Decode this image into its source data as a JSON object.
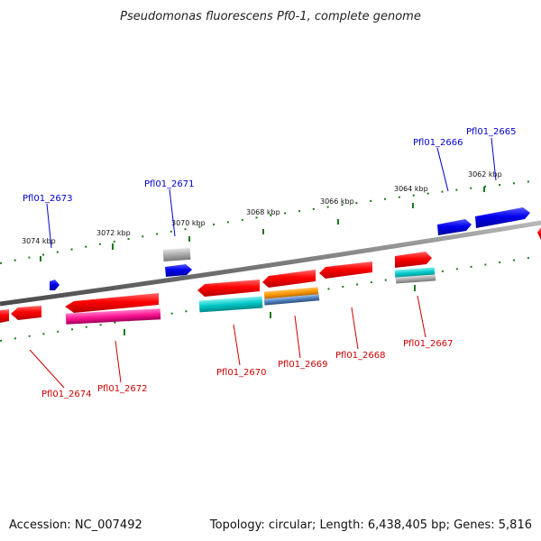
{
  "title": "Pseudomonas fluorescens Pf0-1, complete genome",
  "footer": {
    "accession": "Accession: NC_007492",
    "summary": "Topology: circular; Length: 6,438,405 bp; Genes: 5,816"
  },
  "colors": {
    "backbone": "#7a7a7a",
    "tick": "#1a7a1a",
    "label_forward": "#0000cc",
    "label_reverse": "#cc0000",
    "red_gene": "#ff0000",
    "blue_gene": "#0000ee",
    "cyan_feature": "#00cccc",
    "magenta_feature": "#ff1493",
    "orange_feature": "#ff9900",
    "gray_feature": "#aaaaaa",
    "steelblue_feature": "#4f7fbf"
  },
  "tick_labels": [
    "3074 kbp",
    "3072 kbp",
    "3070 kbp",
    "3068 kbp",
    "3066 kbp",
    "3064 kbp",
    "3062 kbp"
  ],
  "gene_labels_forward": [
    "Pfl01_2673",
    "Pfl01_2671",
    "Pfl01_2666",
    "Pfl01_2665"
  ],
  "gene_labels_reverse": [
    "Pfl01_2674",
    "Pfl01_2672",
    "Pfl01_2670",
    "Pfl01_2669",
    "Pfl01_2668",
    "Pfl01_2667"
  ]
}
